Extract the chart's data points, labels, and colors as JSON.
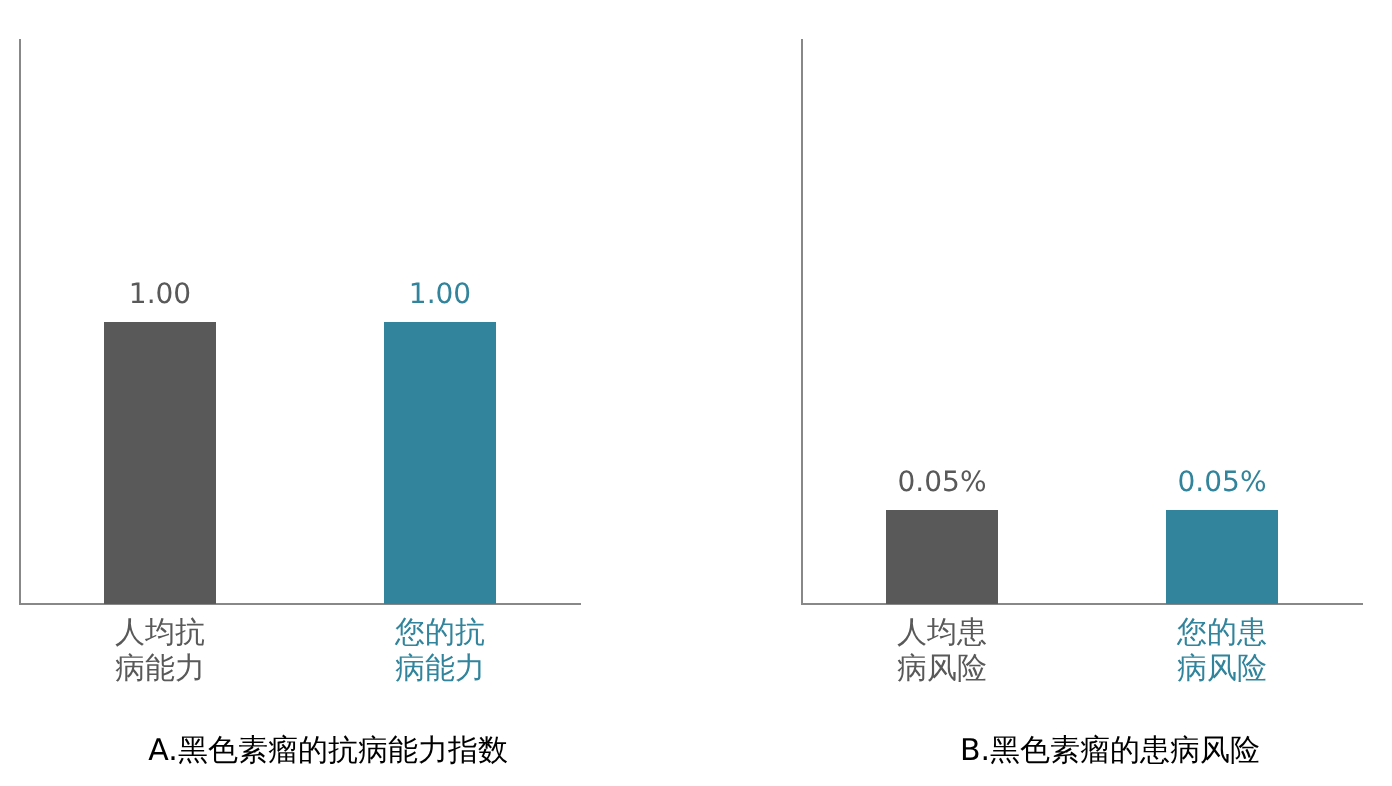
{
  "chart_data": [
    {
      "type": "bar",
      "title": "A.黑色素瘤的抗病能力指数",
      "categories": [
        "人均抗病能力",
        "您的抗病能力"
      ],
      "values": [
        1.0,
        1.0
      ],
      "colors": [
        "#595959",
        "#31849b"
      ],
      "value_labels": [
        "1.00",
        "1.00"
      ],
      "ylim": [
        0,
        2
      ],
      "tick_labels": "x",
      "grid": false,
      "legend": false
    },
    {
      "type": "bar",
      "title": "B.黑色素瘤的患病风险",
      "categories": [
        "人均患病风险",
        "您的患病风险"
      ],
      "values": [
        0.05,
        0.05
      ],
      "colors": [
        "#595959",
        "#31849b"
      ],
      "value_labels": [
        "0.05%",
        "0.05%"
      ],
      "ylim": [
        0,
        0.3
      ],
      "tick_labels": "x",
      "grid": false,
      "legend": false
    }
  ]
}
